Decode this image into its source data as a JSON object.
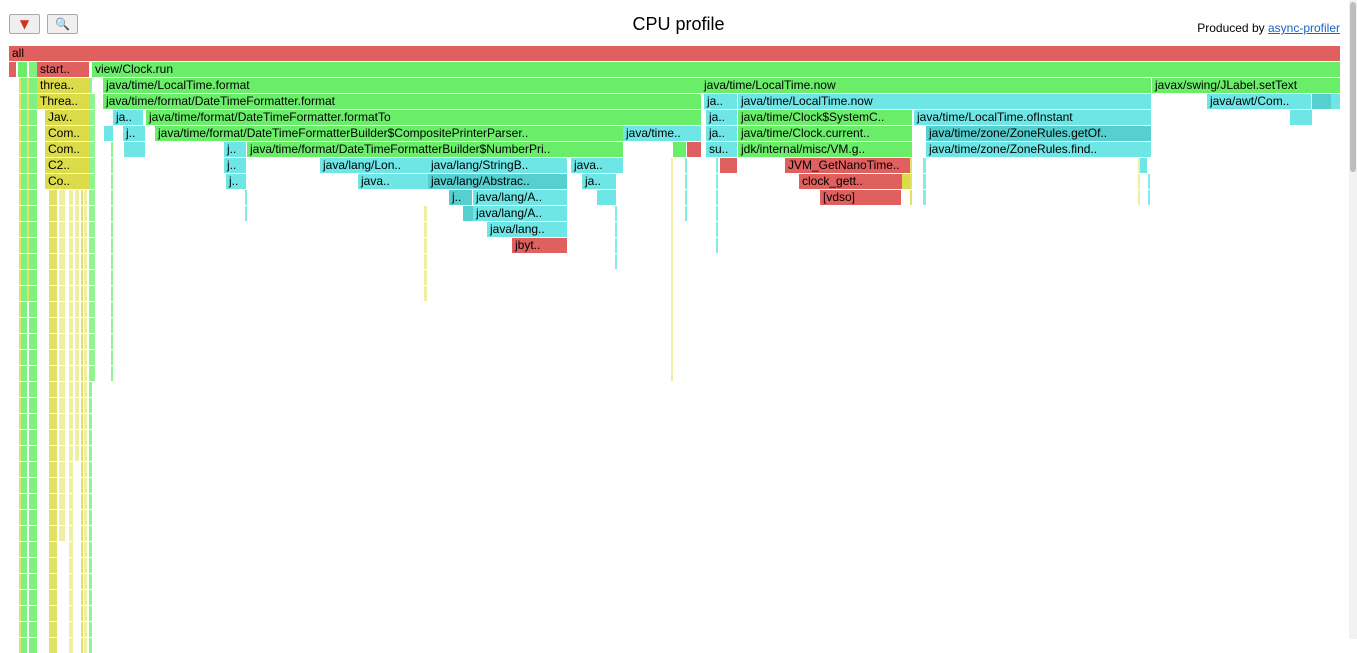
{
  "header": {
    "title": "CPU profile",
    "produced_by_label": "Produced by",
    "produced_by_link": "async-profiler",
    "reverse_button_icon": "reverse-icon",
    "reverse_button_glyph": "▼",
    "search_button_icon": "search-icon",
    "search_button_glyph": "🔍"
  },
  "colors": {
    "red": "#e05f5f",
    "green": "#6aee6a",
    "cyan": "#6ee6e6",
    "cyan_dark": "#55cfcf",
    "yellow": "#dcdc4a",
    "thin_green": "#7df27d",
    "thin_yellow": "#e8e87e",
    "background": "#ffffff"
  },
  "frames": [
    {
      "label": "all",
      "depth": 0,
      "start": 0,
      "end": 1331,
      "color": "red"
    },
    {
      "label": "",
      "depth": 1,
      "start": 0,
      "end": 7,
      "color": "red"
    },
    {
      "label": "",
      "depth": 1,
      "start": 9,
      "end": 18,
      "color": "green"
    },
    {
      "label": "start..",
      "depth": 1,
      "start": 28,
      "end": 80,
      "color": "red"
    },
    {
      "label": "view/Clock.run",
      "depth": 1,
      "start": 83,
      "end": 1331,
      "color": "green"
    },
    {
      "label": "threa..",
      "depth": 2,
      "start": 28,
      "end": 80,
      "color": "yellow"
    },
    {
      "label": "java/time/LocalTime.format",
      "depth": 2,
      "start": 94,
      "end": 692,
      "color": "green"
    },
    {
      "label": "java/time/LocalTime.now",
      "depth": 2,
      "start": 692,
      "end": 1142,
      "color": "green"
    },
    {
      "label": "javax/swing/JLabel.setText",
      "depth": 2,
      "start": 1143,
      "end": 1331,
      "color": "green"
    },
    {
      "label": "Threa..",
      "depth": 3,
      "start": 28,
      "end": 80,
      "color": "yellow"
    },
    {
      "label": "java/time/format/DateTimeFormatter.format",
      "depth": 3,
      "start": 94,
      "end": 692,
      "color": "green"
    },
    {
      "label": "ja..",
      "depth": 3,
      "start": 695,
      "end": 728,
      "color": "cyan"
    },
    {
      "label": "java/time/LocalTime.now",
      "depth": 3,
      "start": 729,
      "end": 1142,
      "color": "cyan"
    },
    {
      "label": "java/awt/Com..",
      "depth": 3,
      "start": 1198,
      "end": 1302,
      "color": "cyan"
    },
    {
      "label": "",
      "depth": 3,
      "start": 1303,
      "end": 1322,
      "color": "cyan_dark"
    },
    {
      "label": "",
      "depth": 3,
      "start": 1322,
      "end": 1331,
      "color": "cyan"
    },
    {
      "label": "Jav..",
      "depth": 4,
      "start": 36,
      "end": 80,
      "color": "yellow"
    },
    {
      "label": "ja..",
      "depth": 4,
      "start": 104,
      "end": 134,
      "color": "cyan"
    },
    {
      "label": "java/time/format/DateTimeFormatter.formatTo",
      "depth": 4,
      "start": 137,
      "end": 692,
      "color": "green"
    },
    {
      "label": "ja..",
      "depth": 4,
      "start": 697,
      "end": 728,
      "color": "cyan"
    },
    {
      "label": "java/time/Clock$SystemC..",
      "depth": 4,
      "start": 729,
      "end": 903,
      "color": "green"
    },
    {
      "label": "java/time/LocalTime.ofInstant",
      "depth": 4,
      "start": 905,
      "end": 1142,
      "color": "cyan"
    },
    {
      "label": "",
      "depth": 4,
      "start": 1281,
      "end": 1303,
      "color": "cyan"
    },
    {
      "label": "Com..",
      "depth": 5,
      "start": 36,
      "end": 80,
      "color": "yellow"
    },
    {
      "label": "",
      "depth": 5,
      "start": 95,
      "end": 104,
      "color": "cyan"
    },
    {
      "label": "j..",
      "depth": 5,
      "start": 114,
      "end": 136,
      "color": "cyan"
    },
    {
      "label": "java/time/format/DateTimeFormatterBuilder$CompositePrinterParser..",
      "depth": 5,
      "start": 146,
      "end": 614,
      "color": "green"
    },
    {
      "label": "java/time..",
      "depth": 5,
      "start": 614,
      "end": 692,
      "color": "cyan"
    },
    {
      "label": "ja..",
      "depth": 5,
      "start": 697,
      "end": 728,
      "color": "cyan"
    },
    {
      "label": "java/time/Clock.current..",
      "depth": 5,
      "start": 729,
      "end": 903,
      "color": "green"
    },
    {
      "label": "java/time/zone/ZoneRules.getOf..",
      "depth": 5,
      "start": 917,
      "end": 1142,
      "color": "cyan_dark"
    },
    {
      "label": "Com..",
      "depth": 6,
      "start": 36,
      "end": 80,
      "color": "yellow"
    },
    {
      "label": "",
      "depth": 6,
      "start": 115,
      "end": 136,
      "color": "cyan"
    },
    {
      "label": "j..",
      "depth": 6,
      "start": 215,
      "end": 237,
      "color": "cyan"
    },
    {
      "label": "java/time/format/DateTimeFormatterBuilder$NumberPri..",
      "depth": 6,
      "start": 238,
      "end": 614,
      "color": "green"
    },
    {
      "label": "",
      "depth": 6,
      "start": 664,
      "end": 677,
      "color": "green"
    },
    {
      "label": "",
      "depth": 6,
      "start": 678,
      "end": 692,
      "color": "red"
    },
    {
      "label": "su..",
      "depth": 6,
      "start": 697,
      "end": 728,
      "color": "cyan"
    },
    {
      "label": "jdk/internal/misc/VM.g..",
      "depth": 6,
      "start": 729,
      "end": 903,
      "color": "green"
    },
    {
      "label": "java/time/zone/ZoneRules.find..",
      "depth": 6,
      "start": 917,
      "end": 1142,
      "color": "cyan"
    },
    {
      "label": "C2..",
      "depth": 7,
      "start": 36,
      "end": 80,
      "color": "yellow"
    },
    {
      "label": "j..",
      "depth": 7,
      "start": 215,
      "end": 237,
      "color": "cyan"
    },
    {
      "label": "java/lang/Lon..",
      "depth": 7,
      "start": 311,
      "end": 419,
      "color": "cyan"
    },
    {
      "label": "java/lang/StringB..",
      "depth": 7,
      "start": 419,
      "end": 558,
      "color": "cyan"
    },
    {
      "label": "java..",
      "depth": 7,
      "start": 562,
      "end": 614,
      "color": "cyan"
    },
    {
      "label": "",
      "depth": 7,
      "start": 711,
      "end": 728,
      "color": "red"
    },
    {
      "label": "JVM_GetNanoTime..",
      "depth": 7,
      "start": 776,
      "end": 901,
      "color": "red"
    },
    {
      "label": "",
      "depth": 7,
      "start": 1131,
      "end": 1138,
      "color": "cyan"
    },
    {
      "label": "Co..",
      "depth": 8,
      "start": 36,
      "end": 80,
      "color": "yellow"
    },
    {
      "label": "j..",
      "depth": 8,
      "start": 217,
      "end": 237,
      "color": "cyan"
    },
    {
      "label": "java..",
      "depth": 8,
      "start": 349,
      "end": 419,
      "color": "cyan"
    },
    {
      "label": "java/lang/Abstrac..",
      "depth": 8,
      "start": 419,
      "end": 558,
      "color": "cyan_dark"
    },
    {
      "label": "ja..",
      "depth": 8,
      "start": 573,
      "end": 607,
      "color": "cyan"
    },
    {
      "label": "clock_gett..",
      "depth": 8,
      "start": 790,
      "end": 893,
      "color": "red"
    },
    {
      "label": "",
      "depth": 8,
      "start": 893,
      "end": 901,
      "color": "yellow"
    },
    {
      "label": "j..",
      "depth": 9,
      "start": 440,
      "end": 463,
      "color": "cyan_dark"
    },
    {
      "label": "java/lang/A..",
      "depth": 9,
      "start": 464,
      "end": 558,
      "color": "cyan"
    },
    {
      "label": "",
      "depth": 9,
      "start": 588,
      "end": 607,
      "color": "cyan"
    },
    {
      "label": "[vdso]",
      "depth": 9,
      "start": 811,
      "end": 892,
      "color": "red"
    },
    {
      "label": "java/lang/A..",
      "depth": 10,
      "start": 464,
      "end": 558,
      "color": "cyan"
    },
    {
      "label": "",
      "depth": 10,
      "start": 454,
      "end": 464,
      "color": "cyan_dark"
    },
    {
      "label": "java/lang..",
      "depth": 11,
      "start": 478,
      "end": 558,
      "color": "cyan"
    },
    {
      "label": "jbyt..",
      "depth": 12,
      "start": 503,
      "end": 558,
      "color": "red"
    }
  ],
  "thin_frames": [
    {
      "start": 10,
      "end": 12,
      "depth_from": 2,
      "depth_to": 37,
      "color": "yellow"
    },
    {
      "start": 12,
      "end": 18,
      "depth_from": 2,
      "depth_to": 37,
      "color": "green"
    },
    {
      "start": 18,
      "end": 20,
      "depth_from": 2,
      "depth_to": 15,
      "color": "yellow"
    },
    {
      "start": 20,
      "end": 28,
      "depth_from": 1,
      "depth_to": 37,
      "color": "green"
    },
    {
      "start": 40,
      "end": 48,
      "depth_from": 9,
      "depth_to": 37,
      "color": "yellow"
    },
    {
      "start": 50,
      "end": 56,
      "depth_from": 9,
      "depth_to": 30,
      "color": "thin_yellow"
    },
    {
      "start": 60,
      "end": 64,
      "depth_from": 9,
      "depth_to": 37,
      "color": "thin_yellow"
    },
    {
      "start": 66,
      "end": 70,
      "depth_from": 9,
      "depth_to": 25,
      "color": "thin_yellow"
    },
    {
      "start": 72,
      "end": 74,
      "depth_from": 9,
      "depth_to": 37,
      "color": "yellow"
    },
    {
      "start": 75,
      "end": 78,
      "depth_from": 2,
      "depth_to": 37,
      "color": "thin_yellow"
    },
    {
      "start": 80,
      "end": 83,
      "depth_from": 2,
      "depth_to": 37,
      "color": "thin_green"
    },
    {
      "start": 83,
      "end": 86,
      "depth_from": 3,
      "depth_to": 20,
      "color": "thin_green"
    },
    {
      "start": 102,
      "end": 104,
      "depth_from": 5,
      "depth_to": 20,
      "color": "thin_green"
    },
    {
      "start": 236,
      "end": 238,
      "depth_from": 9,
      "depth_to": 10,
      "color": "cyan"
    },
    {
      "start": 415,
      "end": 418,
      "depth_from": 10,
      "depth_to": 15,
      "color": "thin_yellow"
    },
    {
      "start": 606,
      "end": 608,
      "depth_from": 10,
      "depth_to": 13,
      "color": "cyan"
    },
    {
      "start": 662,
      "end": 664,
      "depth_from": 7,
      "depth_to": 20,
      "color": "thin_yellow"
    },
    {
      "start": 676,
      "end": 678,
      "depth_from": 7,
      "depth_to": 10,
      "color": "cyan"
    },
    {
      "start": 707,
      "end": 709,
      "depth_from": 7,
      "depth_to": 12,
      "color": "cyan"
    },
    {
      "start": 901,
      "end": 903,
      "depth_from": 7,
      "depth_to": 9,
      "color": "yellow"
    },
    {
      "start": 914,
      "end": 917,
      "depth_from": 7,
      "depth_to": 9,
      "color": "cyan"
    },
    {
      "start": 1129,
      "end": 1131,
      "depth_from": 7,
      "depth_to": 9,
      "color": "thin_yellow"
    },
    {
      "start": 1139,
      "end": 1141,
      "depth_from": 8,
      "depth_to": 9,
      "color": "cyan"
    }
  ]
}
